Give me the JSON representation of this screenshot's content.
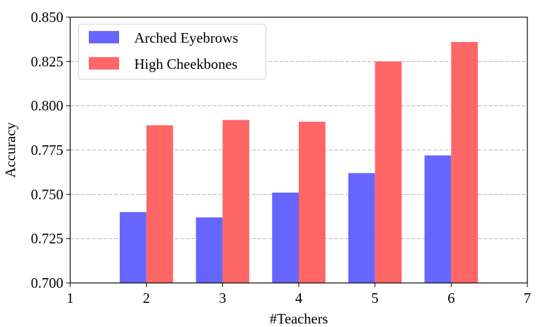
{
  "chart_data": {
    "type": "bar",
    "xlabel": "#Teachers",
    "ylabel": "Accuracy",
    "xlim": [
      1,
      7
    ],
    "ylim": [
      0.7,
      0.85
    ],
    "x_ticks": [
      "1",
      "2",
      "3",
      "4",
      "5",
      "6",
      "7"
    ],
    "y_ticks": [
      "0.700",
      "0.725",
      "0.750",
      "0.775",
      "0.800",
      "0.825",
      "0.850"
    ],
    "categories": [
      2,
      3,
      4,
      5,
      6
    ],
    "series": [
      {
        "name": "Arched Eyebrows",
        "color": "#6666ff",
        "values": [
          0.74,
          0.737,
          0.751,
          0.762,
          0.772
        ]
      },
      {
        "name": "High Cheekbones",
        "color": "#ff6666",
        "values": [
          0.789,
          0.792,
          0.791,
          0.825,
          0.836
        ]
      }
    ],
    "grid": "horizontal dashed",
    "legend_position": "top-left"
  }
}
